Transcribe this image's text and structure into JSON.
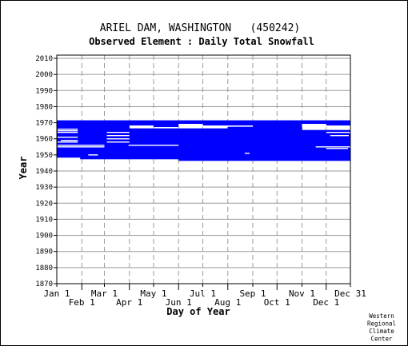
{
  "chart_data": {
    "type": "bar",
    "title": "ARIEL DAM, WASHINGTON   (450242)",
    "subtitle": "Observed Element : Daily Total Snowfall",
    "xlabel": "Day of Year",
    "ylabel": "Year",
    "credit": "Western\nRegional\nClimate\nCenter",
    "xlim": [
      1,
      365
    ],
    "ylim": [
      1870,
      2012
    ],
    "grid": true,
    "colors": {
      "data": "#0000ff",
      "grid": "#9a9a9a",
      "frame": "#000000",
      "background": "#ffffff"
    },
    "x_ticks_top": [
      {
        "label": "Jan 1",
        "day": 1
      },
      {
        "label": "Mar 1",
        "day": 60
      },
      {
        "label": "May 1",
        "day": 121
      },
      {
        "label": "Jul 1",
        "day": 182
      },
      {
        "label": "Sep 1",
        "day": 244
      },
      {
        "label": "Nov 1",
        "day": 305
      },
      {
        "label": "Dec 31",
        "day": 365
      }
    ],
    "x_ticks_bottom": [
      {
        "label": "Feb 1",
        "day": 32
      },
      {
        "label": "Apr 1",
        "day": 91
      },
      {
        "label": "Jun 1",
        "day": 152
      },
      {
        "label": "Aug 1",
        "day": 213
      },
      {
        "label": "Oct 1",
        "day": 274
      },
      {
        "label": "Dec 1",
        "day": 335
      }
    ],
    "y_ticks": [
      1870,
      1880,
      1890,
      1900,
      1910,
      1920,
      1930,
      1940,
      1950,
      1960,
      1970,
      1980,
      1990,
      2000,
      2010
    ],
    "coverage": [
      {
        "year": 1971,
        "start": 1,
        "end": 365
      },
      {
        "year": 1970,
        "start": 1,
        "end": 365
      },
      {
        "year": 1969,
        "start": 1,
        "end": 152
      },
      {
        "year": 1969,
        "start": 182,
        "end": 305
      },
      {
        "year": 1969,
        "start": 335,
        "end": 365
      },
      {
        "year": 1968,
        "start": 1,
        "end": 91
      },
      {
        "year": 1968,
        "start": 121,
        "end": 152
      },
      {
        "year": 1968,
        "start": 244,
        "end": 305
      },
      {
        "year": 1967,
        "start": 1,
        "end": 91
      },
      {
        "year": 1967,
        "start": 213,
        "end": 305
      },
      {
        "year": 1966,
        "start": 1,
        "end": 305
      },
      {
        "year": 1965,
        "start": 1,
        "end": 365
      },
      {
        "year": 1964,
        "start": 1,
        "end": 365
      },
      {
        "year": 1963,
        "start": 1,
        "end": 365
      },
      {
        "year": 1962,
        "start": 1,
        "end": 365
      },
      {
        "year": 1961,
        "start": 1,
        "end": 365
      },
      {
        "year": 1960,
        "start": 1,
        "end": 365
      },
      {
        "year": 1959,
        "start": 1,
        "end": 365
      },
      {
        "year": 1958,
        "start": 1,
        "end": 365
      },
      {
        "year": 1957,
        "start": 1,
        "end": 365
      },
      {
        "year": 1956,
        "start": 1,
        "end": 365
      },
      {
        "year": 1955,
        "start": 1,
        "end": 365
      },
      {
        "year": 1954,
        "start": 1,
        "end": 365
      },
      {
        "year": 1953,
        "start": 1,
        "end": 365
      },
      {
        "year": 1952,
        "start": 1,
        "end": 365
      },
      {
        "year": 1951,
        "start": 1,
        "end": 365
      },
      {
        "year": 1950,
        "start": 1,
        "end": 365
      },
      {
        "year": 1949,
        "start": 1,
        "end": 365
      },
      {
        "year": 1948,
        "start": 30,
        "end": 365
      },
      {
        "year": 1947,
        "start": 152,
        "end": 365
      }
    ],
    "gaps": [
      {
        "year": 1966,
        "start": 2,
        "end": 27
      },
      {
        "year": 1965,
        "start": 2,
        "end": 27
      },
      {
        "year": 1964,
        "start": 2,
        "end": 27
      },
      {
        "year": 1964,
        "start": 63,
        "end": 91
      },
      {
        "year": 1964,
        "start": 335,
        "end": 365
      },
      {
        "year": 1962,
        "start": 63,
        "end": 91
      },
      {
        "year": 1962,
        "start": 340,
        "end": 363
      },
      {
        "year": 1961,
        "start": 2,
        "end": 27
      },
      {
        "year": 1960,
        "start": 63,
        "end": 91
      },
      {
        "year": 1959,
        "start": 6,
        "end": 27
      },
      {
        "year": 1958,
        "start": 2,
        "end": 27
      },
      {
        "year": 1958,
        "start": 63,
        "end": 91
      },
      {
        "year": 1956,
        "start": 2,
        "end": 60
      },
      {
        "year": 1956,
        "start": 90,
        "end": 152
      },
      {
        "year": 1955,
        "start": 2,
        "end": 60
      },
      {
        "year": 1955,
        "start": 322,
        "end": 365
      },
      {
        "year": 1954,
        "start": 335,
        "end": 362
      },
      {
        "year": 1951,
        "start": 234,
        "end": 240
      },
      {
        "year": 1950,
        "start": 40,
        "end": 52
      }
    ]
  }
}
